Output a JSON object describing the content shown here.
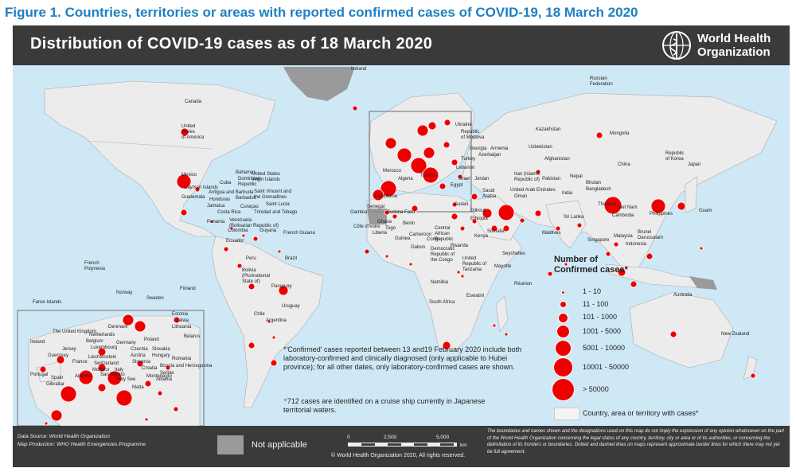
{
  "figure_title": "Figure 1. Countries, territories or areas with reported confirmed cases of COVID-19, 18 March 2020",
  "map_title": "Distribution of COVID-19  cases as of 18 March 2020",
  "logo": {
    "line1": "World Health",
    "line2": "Organization",
    "icon": "who-emblem"
  },
  "colors": {
    "case_marker": "#ee0000",
    "ocean": "#cfe8f6",
    "land_no_case": "#ffffff",
    "land_case": "#ececec",
    "not_applicable": "#9a9a9a",
    "header": "#3a3a3a",
    "title": "#1f7fc2"
  },
  "map_labels": {
    "iceland": "Iceland",
    "russia": "Russian\nFederation",
    "canada": "Canada",
    "usa": "United\nStates\nof America",
    "kazakhstan": "Kazakhstan",
    "mongolia": "Mongolia",
    "china": "China",
    "korea": "Republic\nof Korea",
    "japan": "Japan",
    "uzbekistan": "Uzbekistan",
    "afghanistan": "Afghanistan",
    "nepal": "Nepal",
    "bhutan": "Bhutan",
    "bangladesh": "Bangladesh",
    "pakistan": "Pakistan",
    "india": "India",
    "uae": "United Arab Emirates",
    "oman": "Oman",
    "iran": "Iran (Islamic\nRepublic of)",
    "georgia": "Georgia",
    "armenia": "Armenia",
    "azerbaijan": "Azerbaijan",
    "turkey": "Turkey",
    "moldova": "Republic\nof Moldova",
    "ukraine": "Ukraine",
    "lebanon": "Lebanon",
    "israel": "Israel",
    "jordan": "Jordan",
    "saudi": "Saudi\nArabia",
    "egypt": "Egypt",
    "morocco": "Morocco",
    "algeria": "Algeria",
    "tunisia": "Tunisia",
    "mauritania": "Mauritania",
    "senegal": "Senegal",
    "gambia": "Gambia",
    "burkina": "Burkina Faso",
    "cote": "Côte d'Ivoire",
    "togo": "Togo",
    "liberia": "Liberia",
    "ghana": "Ghana",
    "benin": "Benin",
    "guinea": "Guinea",
    "cameroon": "Cameroon",
    "congo": "Congo",
    "gabon": "Gabon",
    "car": "Central\nAfrican\nRepublic",
    "drc": "Democratic\nRepublic of\nthe Congo",
    "sudan": "Sudan",
    "ethiopia": "Ethiopia",
    "djibouti": "Djibouti",
    "somalia": "Somalia",
    "kenya": "Kenya",
    "rwanda": "Rwanda",
    "tanzania": "United\nRepublic of\nTanzania",
    "namibia": "Namibia",
    "south_africa": "South Africa",
    "eswatini": "Eswatini",
    "mayotte": "Mayotte",
    "reunion": "Réunion",
    "seychelles": "Seychelles",
    "maldives": "Maldives",
    "sri_lanka": "Sri Lanka",
    "thailand": "Thailand",
    "cambodia": "Cambodia",
    "vietnam": "Viet Nam",
    "philippines": "Philippines",
    "guam": "Guam",
    "malaysia": "Malaysia",
    "brunei": "Brunei\nDarussalam",
    "singapore": "Singapore",
    "indonesia": "Indonesia",
    "australia": "Australia",
    "new_zealand": "New Zealand",
    "mexico": "Mexico",
    "cuba": "Cuba",
    "bahamas": "Bahamas",
    "cayman": "Cayman Islands",
    "dominican": "Dominican\nRepublic",
    "guatemala": "Guatemala",
    "honduras": "Honduras",
    "costa_rica": "Costa Rica",
    "panama": "Panama",
    "colombia": "Colombia",
    "venezuela": "Venezuela\n(Bolivarian Republic of)",
    "guyana": "Guyana",
    "french_guiana": "French Guiana",
    "ecuador": "Ecuador",
    "peru": "Peru",
    "brazil": "Brazil",
    "bolivia": "Bolivia\n(Plurinational\nState of)",
    "paraguay": "Paraguay",
    "uruguay": "Uruguay",
    "chile": "Chile",
    "argentina": "Argentina",
    "french_polynesia": "French\nPolynesia",
    "trinidad": "Trinidad and Tobago",
    "saint_lucia": "Saint Lucia",
    "svg": "Saint Vincent and\nthe Grenadines",
    "antigua": "Antigua and Barbuda",
    "barbados": "Barbados",
    "jamaica": "Jamaica",
    "us_virgin": "United States\nVirgin Islands",
    "curacao": "Curaçao"
  },
  "inset_labels": {
    "faroe": "Faroe Islands",
    "norway": "Norway",
    "sweden": "Sweden",
    "finland": "Finland",
    "estonia": "Estonia",
    "latvia": "Latvia",
    "lithuania": "Lithuania",
    "belarus": "Belarus",
    "ireland": "Ireland",
    "uk": "The United Kingdom",
    "denmark": "Denmark",
    "netherlands": "Netherlands",
    "belgium": "Belgium",
    "luxembourg": "Luxembourg",
    "germany": "Germany",
    "poland": "Poland",
    "czechia": "Czechia",
    "jersey": "Jersey",
    "guernsey": "Guernsey",
    "france": "France",
    "liechtenstein": "Liechtenstein",
    "switzerland": "Switzerland",
    "austria": "Austria",
    "slovakia": "Slovakia",
    "hungary": "Hungary",
    "slovenia": "Slovenia",
    "croatia": "Croatia",
    "romania": "Romania",
    "italy": "Italy",
    "san_marino": "San Marino",
    "monaco": "Monaco",
    "andorra": "Andorra",
    "spain": "Spain",
    "portugal": "Portugal",
    "gibraltar": "Gibraltar",
    "bosnia": "Bosnia and Herzegovina",
    "serbia": "Serbia",
    "albania": "Albania",
    "holy_see": "Holy See",
    "malta": "Malta",
    "montenegro": "Montenegro"
  },
  "legend": {
    "title": "Number of\nConfirmed cases*",
    "classes": [
      "1 - 10",
      "11 - 100",
      "101 - 1000",
      "1001 - 5000",
      "5001 - 10000",
      "10001 - 50000",
      "> 50000"
    ],
    "country_with_cases": "Country, area or territory with cases*",
    "not_applicable": "Not applicable"
  },
  "notes": {
    "confirmed": "*'Confirmed' cases reported between 13 and19 February 2020 include both laboratory-confirmed and clinically diagnosed (only applicable to Hubei province); for all other dates, only laboratory-confirmed cases are shown.",
    "cruise": "⁺712 cases are identified on a cruise ship currently in Japanese territorial waters."
  },
  "footer": {
    "data_source": "Data Source:  World Health Organization",
    "map_production": "Map Production:  WHO Health Emergencies Programme",
    "scale_ticks": [
      "0",
      "2,500",
      "5,000"
    ],
    "scale_unit": "km",
    "copyright": "© World Health Organization  2020,  All rights reserved.",
    "disclaimer": "The boundaries and names shown and the designations used on this map do not imply the expression of any opinion whatsoever on the part of the World Health Organization concerning the legal status of any country, territory, city or area or of its authorities, or concerning the delimitation of its frontiers or boundaries. Dotted and dashed lines on maps represent approximate border lines for which there may not yet be full agreement."
  }
}
